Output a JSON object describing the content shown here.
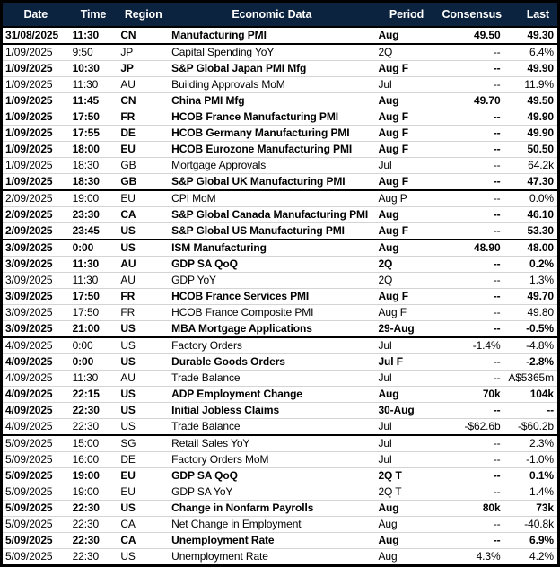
{
  "colors": {
    "header_bg": "#0c2340",
    "header_text": "#ffffff",
    "row_divider": "#d4d4d4",
    "group_divider": "#000000",
    "outer_border": "#000000"
  },
  "table": {
    "columns": [
      "Date",
      "Time",
      "Region",
      "Economic Data",
      "Period",
      "Consensus",
      "Last"
    ],
    "rows": [
      {
        "date": "31/08/2025",
        "time": "11:30",
        "region": "CN",
        "event": "Manufacturing PMI",
        "period": "Aug",
        "consensus": "49.50",
        "last": "49.30",
        "bold": true,
        "new_day": false
      },
      {
        "date": "1/09/2025",
        "time": "9:50",
        "region": "JP",
        "event": "Capital Spending YoY",
        "period": "2Q",
        "consensus": "--",
        "last": "6.4%",
        "bold": false,
        "new_day": true
      },
      {
        "date": "1/09/2025",
        "time": "10:30",
        "region": "JP",
        "event": "S&P Global Japan PMI Mfg",
        "period": "Aug F",
        "consensus": "--",
        "last": "49.90",
        "bold": true,
        "new_day": false
      },
      {
        "date": "1/09/2025",
        "time": "11:30",
        "region": "AU",
        "event": "Building Approvals MoM",
        "period": "Jul",
        "consensus": "--",
        "last": "11.9%",
        "bold": false,
        "new_day": false
      },
      {
        "date": "1/09/2025",
        "time": "11:45",
        "region": "CN",
        "event": "China PMI Mfg",
        "period": "Aug",
        "consensus": "49.70",
        "last": "49.50",
        "bold": true,
        "new_day": false
      },
      {
        "date": "1/09/2025",
        "time": "17:50",
        "region": "FR",
        "event": "HCOB France Manufacturing PMI",
        "period": "Aug F",
        "consensus": "--",
        "last": "49.90",
        "bold": true,
        "new_day": false
      },
      {
        "date": "1/09/2025",
        "time": "17:55",
        "region": "DE",
        "event": "HCOB Germany Manufacturing PMI",
        "period": "Aug F",
        "consensus": "--",
        "last": "49.90",
        "bold": true,
        "new_day": false
      },
      {
        "date": "1/09/2025",
        "time": "18:00",
        "region": "EU",
        "event": "HCOB Eurozone Manufacturing PMI",
        "period": "Aug F",
        "consensus": "--",
        "last": "50.50",
        "bold": true,
        "new_day": false
      },
      {
        "date": "1/09/2025",
        "time": "18:30",
        "region": "GB",
        "event": "Mortgage Approvals",
        "period": "Jul",
        "consensus": "--",
        "last": "64.2k",
        "bold": false,
        "new_day": false
      },
      {
        "date": "1/09/2025",
        "time": "18:30",
        "region": "GB",
        "event": "S&P Global UK Manufacturing PMI",
        "period": "Aug F",
        "consensus": "--",
        "last": "47.30",
        "bold": true,
        "new_day": false
      },
      {
        "date": "2/09/2025",
        "time": "19:00",
        "region": "EU",
        "event": "CPI MoM",
        "period": "Aug P",
        "consensus": "--",
        "last": "0.0%",
        "bold": false,
        "new_day": true
      },
      {
        "date": "2/09/2025",
        "time": "23:30",
        "region": "CA",
        "event": "S&P Global Canada Manufacturing PMI",
        "period": "Aug",
        "consensus": "--",
        "last": "46.10",
        "bold": true,
        "new_day": false
      },
      {
        "date": "2/09/2025",
        "time": "23:45",
        "region": "US",
        "event": "S&P Global US Manufacturing PMI",
        "period": "Aug F",
        "consensus": "--",
        "last": "53.30",
        "bold": true,
        "new_day": false
      },
      {
        "date": "3/09/2025",
        "time": "0:00",
        "region": "US",
        "event": "ISM Manufacturing",
        "period": "Aug",
        "consensus": "48.90",
        "last": "48.00",
        "bold": true,
        "new_day": true
      },
      {
        "date": "3/09/2025",
        "time": "11:30",
        "region": "AU",
        "event": "GDP SA QoQ",
        "period": "2Q",
        "consensus": "--",
        "last": "0.2%",
        "bold": true,
        "new_day": false
      },
      {
        "date": "3/09/2025",
        "time": "11:30",
        "region": "AU",
        "event": "GDP YoY",
        "period": "2Q",
        "consensus": "--",
        "last": "1.3%",
        "bold": false,
        "new_day": false
      },
      {
        "date": "3/09/2025",
        "time": "17:50",
        "region": "FR",
        "event": "HCOB France Services PMI",
        "period": "Aug F",
        "consensus": "--",
        "last": "49.70",
        "bold": true,
        "new_day": false
      },
      {
        "date": "3/09/2025",
        "time": "17:50",
        "region": "FR",
        "event": "HCOB France Composite PMI",
        "period": "Aug F",
        "consensus": "--",
        "last": "49.80",
        "bold": false,
        "new_day": false
      },
      {
        "date": "3/09/2025",
        "time": "21:00",
        "region": "US",
        "event": "MBA Mortgage Applications",
        "period": "29-Aug",
        "consensus": "--",
        "last": "-0.5%",
        "bold": true,
        "new_day": false
      },
      {
        "date": "4/09/2025",
        "time": "0:00",
        "region": "US",
        "event": "Factory Orders",
        "period": "Jul",
        "consensus": "-1.4%",
        "last": "-4.8%",
        "bold": false,
        "new_day": true
      },
      {
        "date": "4/09/2025",
        "time": "0:00",
        "region": "US",
        "event": "Durable Goods Orders",
        "period": "Jul F",
        "consensus": "--",
        "last": "-2.8%",
        "bold": true,
        "new_day": false
      },
      {
        "date": "4/09/2025",
        "time": "11:30",
        "region": "AU",
        "event": "Trade Balance",
        "period": "Jul",
        "consensus": "--",
        "last": "A$5365m",
        "bold": false,
        "new_day": false
      },
      {
        "date": "4/09/2025",
        "time": "22:15",
        "region": "US",
        "event": "ADP Employment Change",
        "period": "Aug",
        "consensus": "70k",
        "last": "104k",
        "bold": true,
        "new_day": false
      },
      {
        "date": "4/09/2025",
        "time": "22:30",
        "region": "US",
        "event": "Initial Jobless Claims",
        "period": "30-Aug",
        "consensus": "--",
        "last": "--",
        "bold": true,
        "new_day": false
      },
      {
        "date": "4/09/2025",
        "time": "22:30",
        "region": "US",
        "event": "Trade Balance",
        "period": "Jul",
        "consensus": "-$62.6b",
        "last": "-$60.2b",
        "bold": false,
        "new_day": false
      },
      {
        "date": "5/09/2025",
        "time": "15:00",
        "region": "SG",
        "event": "Retail Sales YoY",
        "period": "Jul",
        "consensus": "--",
        "last": "2.3%",
        "bold": false,
        "new_day": true
      },
      {
        "date": "5/09/2025",
        "time": "16:00",
        "region": "DE",
        "event": "Factory Orders MoM",
        "period": "Jul",
        "consensus": "--",
        "last": "-1.0%",
        "bold": false,
        "new_day": false
      },
      {
        "date": "5/09/2025",
        "time": "19:00",
        "region": "EU",
        "event": "GDP SA QoQ",
        "period": "2Q T",
        "consensus": "--",
        "last": "0.1%",
        "bold": true,
        "new_day": false
      },
      {
        "date": "5/09/2025",
        "time": "19:00",
        "region": "EU",
        "event": "GDP SA YoY",
        "period": "2Q T",
        "consensus": "--",
        "last": "1.4%",
        "bold": false,
        "new_day": false
      },
      {
        "date": "5/09/2025",
        "time": "22:30",
        "region": "US",
        "event": "Change in Nonfarm Payrolls",
        "period": "Aug",
        "consensus": "80k",
        "last": "73k",
        "bold": true,
        "new_day": false
      },
      {
        "date": "5/09/2025",
        "time": "22:30",
        "region": "CA",
        "event": "Net Change in Employment",
        "period": "Aug",
        "consensus": "--",
        "last": "-40.8k",
        "bold": false,
        "new_day": false
      },
      {
        "date": "5/09/2025",
        "time": "22:30",
        "region": "CA",
        "event": "Unemployment Rate",
        "period": "Aug",
        "consensus": "--",
        "last": "6.9%",
        "bold": true,
        "new_day": false
      },
      {
        "date": "5/09/2025",
        "time": "22:30",
        "region": "US",
        "event": "Unemployment Rate",
        "period": "Aug",
        "consensus": "4.3%",
        "last": "4.2%",
        "bold": false,
        "new_day": false
      }
    ]
  }
}
